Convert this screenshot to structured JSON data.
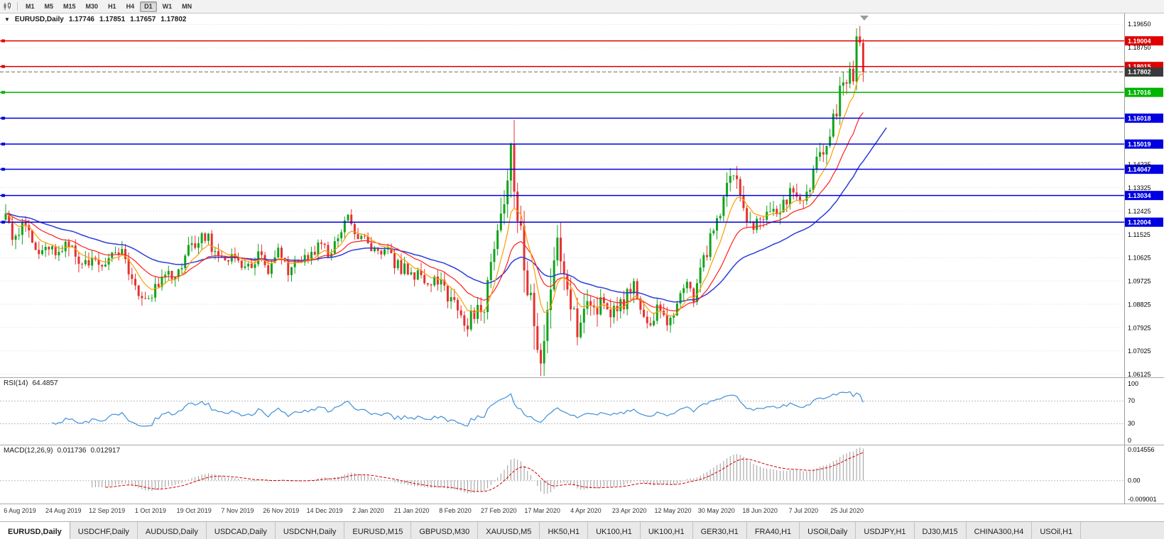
{
  "icons": {
    "collapse_arrow": "▼"
  },
  "colors": {
    "up": "#12a31d",
    "down": "#e43131",
    "ma_fast": "#ff9c00",
    "ma_mid": "#ff1f1f",
    "ma_slow": "#2b3fd6",
    "rsi": "#3e8fd8",
    "macd_hist": "#9b9b9b",
    "macd_signal": "#d40000",
    "grid": "#d9d9d9",
    "scale_sep": "#9a9a9a",
    "current": "#3a3a3a"
  },
  "toolbar": {
    "timeframes": [
      "M1",
      "M5",
      "M15",
      "M30",
      "H1",
      "H4",
      "D1",
      "W1",
      "MN"
    ],
    "active": "D1"
  },
  "main_chart": {
    "symbol_label": "EURUSD,Daily",
    "ohlc": {
      "open": "1.17746",
      "high": "1.17851",
      "low": "1.17657",
      "close": "1.17802"
    },
    "price_scale_ticks": [
      "1.19650",
      "1.18750",
      "1.14235",
      "1.13325",
      "1.12425",
      "1.11525",
      "1.10625",
      "1.09725",
      "1.08825",
      "1.07925",
      "1.07025",
      "1.06125"
    ],
    "levels": [
      {
        "value": 1.19004,
        "label": "1.19004",
        "color": "#e00000"
      },
      {
        "value": 1.18015,
        "label": "1.18015",
        "color": "#e00000"
      },
      {
        "value": 1.17016,
        "label": "1.17016",
        "color": "#00b400"
      },
      {
        "value": 1.16018,
        "label": "1.16018",
        "color": "#0000e0"
      },
      {
        "value": 1.15019,
        "label": "1.15019",
        "color": "#0000e0"
      },
      {
        "value": 1.14047,
        "label": "1.14047",
        "color": "#0000e0"
      },
      {
        "value": 1.13034,
        "label": "1.13034",
        "color": "#0000e0"
      },
      {
        "value": 1.12004,
        "label": "1.12004",
        "color": "#0000e0"
      }
    ],
    "current_price": {
      "value": 1.17802,
      "label": "1.17802"
    }
  },
  "indicators": {
    "rsi": {
      "label": "RSI(14)",
      "value": "64.4857",
      "scale": [
        {
          "label": "100",
          "value": 100
        },
        {
          "label": "70",
          "value": 70
        },
        {
          "label": "30",
          "value": 30
        },
        {
          "label": "0",
          "value": 0
        }
      ],
      "guide_levels": [
        70,
        30
      ]
    },
    "macd": {
      "label": "MACD(12,26,9)",
      "value_main": "0.011736",
      "value_signal": "0.012917",
      "scale": [
        {
          "label": "0.014556",
          "value": 0.014556
        },
        {
          "label": "0.00",
          "value": 0
        },
        {
          "label": "-0.009001",
          "value": -0.009001
        }
      ]
    }
  },
  "dates": [
    "6 Aug 2019",
    "24 Aug 2019",
    "12 Sep 2019",
    "1 Oct 2019",
    "19 Oct 2019",
    "7 Nov 2019",
    "26 Nov 2019",
    "14 Dec 2019",
    "2 Jan 2020",
    "21 Jan 2020",
    "8 Feb 2020",
    "27 Feb 2020",
    "17 Mar 2020",
    "4 Apr 2020",
    "23 Apr 2020",
    "12 May 2020",
    "30 May 2020",
    "18 Jun 2020",
    "7 Jul 2020",
    "25 Jul 2020"
  ],
  "tabs": [
    "EURUSD,Daily",
    "USDCHF,Daily",
    "AUDUSD,Daily",
    "USDCAD,Daily",
    "USDCNH,Daily",
    "EURUSD,M15",
    "GBPUSD,M30",
    "XAUUSD,M5",
    "HK50,H1",
    "UK100,H1",
    "UK100,H1",
    "GER30,H1",
    "FRA40,H1",
    "USOil,Daily",
    "USDJPY,H1",
    "DJ30,M15",
    "CHINA300,H4",
    "USOil,H1"
  ],
  "active_tab_index": 0,
  "chart_data": {
    "type": "candlestick",
    "symbol": "EURUSD",
    "timeframe": "Daily",
    "x_range": [
      "6 Aug 2019",
      "7 Aug 2020"
    ],
    "y_range": [
      1.06125,
      1.1965
    ],
    "num_candles": 259,
    "last_close": 1.17802,
    "close_anchors": [
      [
        0,
        1.121
      ],
      [
        2,
        1.1155
      ],
      [
        5,
        1.1185
      ],
      [
        8,
        1.1125
      ],
      [
        11,
        1.1095
      ],
      [
        14,
        1.109
      ],
      [
        17,
        1.1105
      ],
      [
        20,
        1.108
      ],
      [
        23,
        1.104
      ],
      [
        26,
        1.107
      ],
      [
        28,
        1.1005
      ],
      [
        31,
        1.107
      ],
      [
        34,
        1.11
      ],
      [
        37,
        1.101
      ],
      [
        40,
        1.093
      ],
      [
        43,
        1.0895
      ],
      [
        46,
        1.097
      ],
      [
        49,
        1.0985
      ],
      [
        52,
        1.1025
      ],
      [
        55,
        1.1095
      ],
      [
        58,
        1.1145
      ],
      [
        61,
        1.113
      ],
      [
        64,
        1.1075
      ],
      [
        67,
        1.107
      ],
      [
        70,
        1.103
      ],
      [
        73,
        1.1015
      ],
      [
        76,
        1.1065
      ],
      [
        79,
        1.102
      ],
      [
        82,
        1.108
      ],
      [
        85,
        1.1015
      ],
      [
        88,
        1.104
      ],
      [
        91,
        1.1065
      ],
      [
        94,
        1.111
      ],
      [
        97,
        1.1085
      ],
      [
        100,
        1.112
      ],
      [
        103,
        1.122
      ],
      [
        105,
        1.117
      ],
      [
        108,
        1.113
      ],
      [
        111,
        1.1095
      ],
      [
        114,
        1.11
      ],
      [
        117,
        1.1035
      ],
      [
        120,
        1.102
      ],
      [
        123,
        1.1
      ],
      [
        126,
        1.098
      ],
      [
        129,
        1.0965
      ],
      [
        132,
        1.0945
      ],
      [
        135,
        1.087
      ],
      [
        138,
        1.079
      ],
      [
        141,
        1.0845
      ],
      [
        144,
        1.088
      ],
      [
        146,
        1.103
      ],
      [
        148,
        1.113
      ],
      [
        150,
        1.1285
      ],
      [
        152,
        1.144
      ],
      [
        153,
        1.137
      ],
      [
        155,
        1.115
      ],
      [
        157,
        1.1
      ],
      [
        159,
        1.081
      ],
      [
        161,
        1.065
      ],
      [
        163,
        1.079
      ],
      [
        165,
        1.103
      ],
      [
        166,
        1.112
      ],
      [
        168,
        1.103
      ],
      [
        170,
        1.088
      ],
      [
        172,
        1.08
      ],
      [
        174,
        1.088
      ],
      [
        176,
        1.0915
      ],
      [
        178,
        1.087
      ],
      [
        180,
        1.0885
      ],
      [
        183,
        1.085
      ],
      [
        186,
        1.088
      ],
      [
        189,
        1.097
      ],
      [
        191,
        1.088
      ],
      [
        194,
        1.082
      ],
      [
        196,
        1.0855
      ],
      [
        199,
        1.0795
      ],
      [
        201,
        1.082
      ],
      [
        203,
        1.0915
      ],
      [
        205,
        1.095
      ],
      [
        207,
        1.09
      ],
      [
        209,
        1.1
      ],
      [
        212,
        1.113
      ],
      [
        214,
        1.118
      ],
      [
        216,
        1.129
      ],
      [
        219,
        1.139
      ],
      [
        221,
        1.13
      ],
      [
        223,
        1.121
      ],
      [
        225,
        1.1185
      ],
      [
        227,
        1.123
      ],
      [
        229,
        1.125
      ],
      [
        231,
        1.122
      ],
      [
        233,
        1.125
      ],
      [
        235,
        1.1275
      ],
      [
        237,
        1.133
      ],
      [
        239,
        1.128
      ],
      [
        241,
        1.131
      ],
      [
        243,
        1.139
      ],
      [
        245,
        1.144
      ],
      [
        247,
        1.151
      ],
      [
        249,
        1.159
      ],
      [
        251,
        1.17
      ],
      [
        253,
        1.1755
      ],
      [
        255,
        1.1785
      ],
      [
        256,
        1.188
      ],
      [
        257,
        1.1855
      ],
      [
        258,
        1.17802
      ]
    ],
    "volatility_anchors": [
      [
        0,
        0.0045
      ],
      [
        40,
        0.004
      ],
      [
        100,
        0.003
      ],
      [
        130,
        0.0035
      ],
      [
        145,
        0.0065
      ],
      [
        150,
        0.0095
      ],
      [
        152,
        0.0115
      ],
      [
        162,
        0.0115
      ],
      [
        170,
        0.0075
      ],
      [
        185,
        0.0045
      ],
      [
        205,
        0.004
      ],
      [
        215,
        0.005
      ],
      [
        240,
        0.0045
      ],
      [
        250,
        0.006
      ],
      [
        258,
        0.0055
      ]
    ],
    "moving_averages": [
      {
        "name": "fast",
        "period": 8
      },
      {
        "name": "medium",
        "period": 20
      },
      {
        "name": "slow",
        "period": 45
      }
    ],
    "rsi": {
      "period": 14,
      "last": 64.4857
    },
    "macd": {
      "fast": 12,
      "slow": 26,
      "signal": 9,
      "last_main": 0.011736,
      "last_signal": 0.012917
    }
  }
}
